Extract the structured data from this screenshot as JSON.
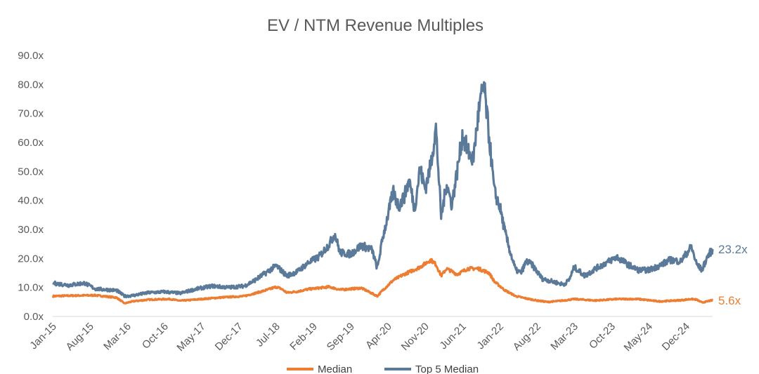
{
  "chart_data": {
    "type": "line",
    "title": "EV / NTM Revenue Multiples",
    "xlabel": "",
    "ylabel": "",
    "ylim": [
      0,
      90
    ],
    "y_ticks": [
      "0.0x",
      "10.0x",
      "20.0x",
      "30.0x",
      "40.0x",
      "50.0x",
      "60.0x",
      "70.0x",
      "80.0x",
      "90.0x"
    ],
    "y_tick_values": [
      0,
      10,
      20,
      30,
      40,
      50,
      60,
      70,
      80,
      90
    ],
    "x_ticks": [
      "Jan-15",
      "Aug-15",
      "Mar-16",
      "Oct-16",
      "May-17",
      "Dec-17",
      "Jul-18",
      "Feb-19",
      "Sep-19",
      "Apr-20",
      "Nov-20",
      "Jun-21",
      "Jan-22",
      "Aug-22",
      "Mar-23",
      "Oct-23",
      "May-24",
      "Dec-24"
    ],
    "x_range_months": [
      0,
      124
    ],
    "grid": false,
    "legend_position": "bottom",
    "series": [
      {
        "name": "Median",
        "color": "#ED7D31",
        "end_label": "5.6x",
        "points": [
          [
            0,
            7.0
          ],
          [
            4,
            7.2
          ],
          [
            8,
            7.3
          ],
          [
            12,
            6.5
          ],
          [
            13.5,
            4.5
          ],
          [
            15,
            5.2
          ],
          [
            18,
            5.8
          ],
          [
            22,
            6.0
          ],
          [
            24,
            5.4
          ],
          [
            28,
            6.0
          ],
          [
            32,
            6.6
          ],
          [
            36,
            7.0
          ],
          [
            38,
            8.0
          ],
          [
            40,
            9.0
          ],
          [
            42,
            10.2
          ],
          [
            43,
            9.5
          ],
          [
            44,
            8.2
          ],
          [
            46,
            8.6
          ],
          [
            48,
            9.4
          ],
          [
            52,
            10.2
          ],
          [
            54,
            9.2
          ],
          [
            58,
            9.8
          ],
          [
            61,
            7.0
          ],
          [
            62,
            9.0
          ],
          [
            64,
            12.5
          ],
          [
            66,
            14.5
          ],
          [
            69,
            17.0
          ],
          [
            71,
            19.5
          ],
          [
            72,
            18.0
          ],
          [
            73,
            14.0
          ],
          [
            74,
            16.5
          ],
          [
            76,
            14.5
          ],
          [
            78,
            16.5
          ],
          [
            80,
            16.5
          ],
          [
            82,
            15.0
          ],
          [
            83,
            12.0
          ],
          [
            85,
            9.0
          ],
          [
            87,
            7.0
          ],
          [
            89,
            6.2
          ],
          [
            91,
            5.5
          ],
          [
            93,
            5.0
          ],
          [
            96,
            5.5
          ],
          [
            98,
            6.0
          ],
          [
            102,
            5.5
          ],
          [
            106,
            6.0
          ],
          [
            110,
            6.0
          ],
          [
            114,
            5.2
          ],
          [
            118,
            5.6
          ],
          [
            120,
            6.0
          ],
          [
            121,
            5.8
          ],
          [
            122,
            4.8
          ],
          [
            124,
            5.6
          ]
        ]
      },
      {
        "name": "Top 5 Median",
        "color": "#5B7A99",
        "end_label": "23.2x",
        "points": [
          [
            0,
            11.5
          ],
          [
            3,
            10.8
          ],
          [
            6,
            11.5
          ],
          [
            8,
            9.5
          ],
          [
            12,
            9.0
          ],
          [
            13.5,
            7.0
          ],
          [
            15,
            7.2
          ],
          [
            18,
            8.2
          ],
          [
            21,
            8.5
          ],
          [
            24,
            8.0
          ],
          [
            27,
            9.5
          ],
          [
            30,
            10.5
          ],
          [
            33,
            10.0
          ],
          [
            36,
            10.5
          ],
          [
            38,
            12.5
          ],
          [
            40,
            15.0
          ],
          [
            42,
            17.5
          ],
          [
            44,
            14.0
          ],
          [
            46,
            15.5
          ],
          [
            48,
            18.5
          ],
          [
            50,
            20.5
          ],
          [
            52,
            25.0
          ],
          [
            53,
            28.5
          ],
          [
            54,
            22.0
          ],
          [
            56,
            21.5
          ],
          [
            58,
            24.5
          ],
          [
            60,
            23.0
          ],
          [
            61,
            16.5
          ],
          [
            62,
            27.0
          ],
          [
            63,
            35.0
          ],
          [
            64,
            43.0
          ],
          [
            65,
            38.0
          ],
          [
            66,
            41.0
          ],
          [
            67,
            47.0
          ],
          [
            68,
            37.0
          ],
          [
            69,
            51.0
          ],
          [
            70,
            44.0
          ],
          [
            71,
            52.0
          ],
          [
            72,
            65.0
          ],
          [
            73,
            34.0
          ],
          [
            74,
            46.0
          ],
          [
            75,
            38.5
          ],
          [
            76,
            50.0
          ],
          [
            77,
            62.5
          ],
          [
            78,
            57.0
          ],
          [
            79,
            54.0
          ],
          [
            80,
            70.0
          ],
          [
            81,
            80.0
          ],
          [
            82,
            62.0
          ],
          [
            83,
            43.0
          ],
          [
            84,
            38.0
          ],
          [
            85,
            29.0
          ],
          [
            86,
            22.0
          ],
          [
            87,
            16.0
          ],
          [
            88,
            15.0
          ],
          [
            89,
            19.0
          ],
          [
            90,
            18.0
          ],
          [
            92,
            13.0
          ],
          [
            94,
            12.0
          ],
          [
            96,
            11.0
          ],
          [
            97,
            12.5
          ],
          [
            98,
            17.0
          ],
          [
            100,
            14.0
          ],
          [
            102,
            16.5
          ],
          [
            104,
            18.5
          ],
          [
            106,
            20.5
          ],
          [
            108,
            18.0
          ],
          [
            110,
            16.0
          ],
          [
            112,
            16.0
          ],
          [
            114,
            17.5
          ],
          [
            116,
            19.5
          ],
          [
            118,
            19.0
          ],
          [
            120,
            24.0
          ],
          [
            121,
            18.0
          ],
          [
            122,
            16.0
          ],
          [
            123,
            20.5
          ],
          [
            124,
            23.2
          ]
        ]
      }
    ]
  }
}
